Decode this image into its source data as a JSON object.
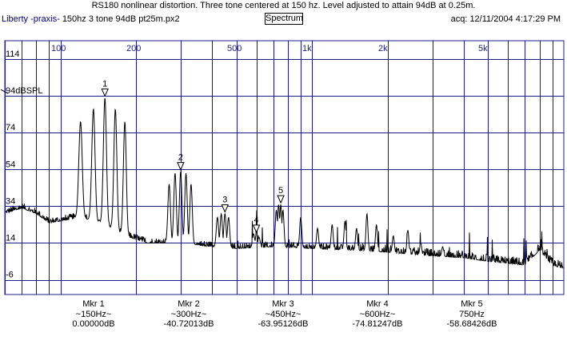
{
  "window": {
    "title": "RS180 nonlinear distortion. Three tone centered at 150 hz.  Level adjusted to attain 94dB at 0.25m.",
    "app_name": "Liberty -praxis-",
    "file_name": "150hz 3 tone 94dB pt25m.px2",
    "view_button": "Spectrum",
    "acquisition": "acq: 12/11/2004 4:17:29 PM"
  },
  "colors": {
    "grid": "#1c1c8a",
    "trace": "#000000",
    "marker_outline": "#000000"
  },
  "chart_data": {
    "type": "line",
    "x_scale": "log",
    "xlim": [
      60,
      10000
    ],
    "ylim": [
      -14,
      124
    ],
    "x_tick_labels": [
      {
        "value": 100,
        "label": "100"
      },
      {
        "value": 200,
        "label": "200"
      },
      {
        "value": 500,
        "label": "500"
      },
      {
        "value": 1000,
        "label": "1k"
      },
      {
        "value": 2000,
        "label": "2k"
      },
      {
        "value": 5000,
        "label": "5k"
      }
    ],
    "x_gridlines": [
      60,
      70,
      80,
      90,
      100,
      200,
      300,
      400,
      500,
      600,
      700,
      800,
      900,
      1000,
      2000,
      3000,
      4000,
      5000,
      6000,
      7000,
      8000,
      9000
    ],
    "y_tick_labels": [
      {
        "value": 114,
        "label": "114"
      },
      {
        "value": 94,
        "label": "94dBSPL"
      },
      {
        "value": 74,
        "label": "74"
      },
      {
        "value": 54,
        "label": "54"
      },
      {
        "value": 34,
        "label": "34"
      },
      {
        "value": 14,
        "label": "14"
      },
      {
        "value": -6,
        "label": "-6"
      }
    ],
    "reference_level": 94,
    "spectrum": {
      "floor_points": [
        [
          60,
          30
        ],
        [
          70,
          33
        ],
        [
          80,
          30
        ],
        [
          90,
          25
        ],
        [
          100,
          26
        ],
        [
          120,
          28
        ],
        [
          150,
          24
        ],
        [
          180,
          18
        ],
        [
          220,
          14
        ],
        [
          300,
          14
        ],
        [
          400,
          12
        ],
        [
          500,
          11
        ],
        [
          700,
          12
        ],
        [
          1000,
          11
        ],
        [
          1500,
          10
        ],
        [
          2000,
          9
        ],
        [
          3000,
          7
        ],
        [
          4000,
          6
        ],
        [
          5000,
          4
        ],
        [
          6000,
          3
        ],
        [
          7000,
          2
        ],
        [
          8000,
          10
        ],
        [
          9000,
          2
        ],
        [
          10000,
          0
        ]
      ],
      "peaks": [
        {
          "freq": 120,
          "level": 80
        },
        {
          "freq": 135,
          "level": 87
        },
        {
          "freq": 150,
          "level": 93
        },
        {
          "freq": 165,
          "level": 87
        },
        {
          "freq": 180,
          "level": 80
        },
        {
          "freq": 270,
          "level": 46
        },
        {
          "freq": 285,
          "level": 52
        },
        {
          "freq": 300,
          "level": 53
        },
        {
          "freq": 315,
          "level": 52
        },
        {
          "freq": 330,
          "level": 46
        },
        {
          "freq": 420,
          "level": 28
        },
        {
          "freq": 435,
          "level": 30
        },
        {
          "freq": 450,
          "level": 30
        },
        {
          "freq": 465,
          "level": 28
        },
        {
          "freq": 585,
          "level": 19
        },
        {
          "freq": 600,
          "level": 19
        },
        {
          "freq": 615,
          "level": 17
        },
        {
          "freq": 720,
          "level": 32
        },
        {
          "freq": 735,
          "level": 35
        },
        {
          "freq": 750,
          "level": 35
        },
        {
          "freq": 765,
          "level": 32
        },
        {
          "freq": 900,
          "level": 28
        },
        {
          "freq": 1050,
          "level": 22
        },
        {
          "freq": 1200,
          "level": 24
        },
        {
          "freq": 1350,
          "level": 26
        },
        {
          "freq": 1500,
          "level": 22
        },
        {
          "freq": 1650,
          "level": 30
        },
        {
          "freq": 1800,
          "level": 24
        },
        {
          "freq": 2100,
          "level": 18
        },
        {
          "freq": 2400,
          "level": 21
        },
        {
          "freq": 2700,
          "level": 14
        },
        {
          "freq": 3300,
          "level": 12
        }
      ]
    },
    "markers": [
      {
        "number": "1",
        "freq": 150,
        "level": 93,
        "label": "Mkr 1",
        "freq_label": "~150Hz~",
        "value": "0.00000dB"
      },
      {
        "number": "2",
        "freq": 300,
        "level": 53,
        "label": "Mkr 2",
        "freq_label": "~300Hz~",
        "value": "-40.72013dB"
      },
      {
        "number": "3",
        "freq": 450,
        "level": 30,
        "label": "Mkr 3",
        "freq_label": "~450Hz~",
        "value": "-63.95126dB"
      },
      {
        "number": "4",
        "freq": 600,
        "level": 19,
        "label": "Mkr 4",
        "freq_label": "~600Hz~",
        "value": "-74.81247dB"
      },
      {
        "number": "5",
        "freq": 750,
        "level": 35,
        "label": "Mkr 5",
        "freq_label": "750Hz",
        "value": "-58.68426dB"
      }
    ]
  }
}
